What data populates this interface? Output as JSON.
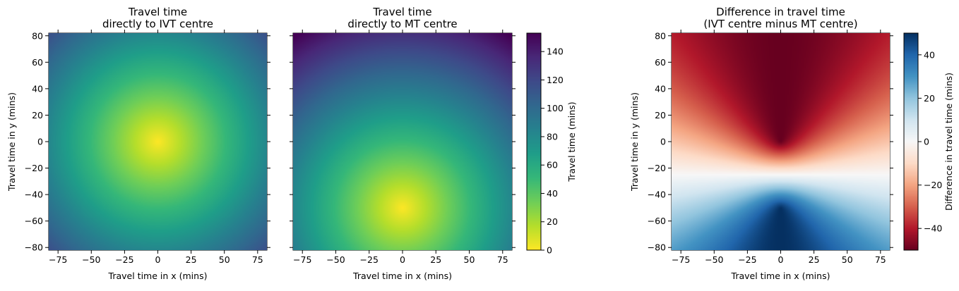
{
  "chart_data": [
    {
      "type": "heatmap",
      "title": [
        "Travel time",
        "directly to IVT centre"
      ],
      "xlabel": "Travel time in x (mins)",
      "ylabel": "Travel time in y (mins)",
      "xlim": [
        -82,
        82
      ],
      "ylim": [
        -82,
        82
      ],
      "xticks": [
        -75,
        -50,
        -25,
        0,
        25,
        50,
        75
      ],
      "yticks": [
        -80,
        -60,
        -40,
        -20,
        0,
        20,
        40,
        60,
        80
      ],
      "colormap": "viridis_r",
      "value": "travel time to IVT centre",
      "markers": [
        {
          "shape": "circle",
          "x": 0,
          "y": 0
        },
        {
          "shape": "diamond",
          "x": 0,
          "y": -50
        }
      ]
    },
    {
      "type": "heatmap",
      "title": [
        "Travel time",
        "directly to MT centre"
      ],
      "xlabel": "Travel time in x (mins)",
      "ylabel": "",
      "xlim": [
        -82,
        82
      ],
      "ylim": [
        -82,
        82
      ],
      "xticks": [
        -75,
        -50,
        -25,
        0,
        25,
        50,
        75
      ],
      "yticks": [
        -80,
        -60,
        -40,
        -20,
        0,
        20,
        40,
        60,
        80
      ],
      "colormap": "viridis_r",
      "value": "travel time to MT centre",
      "colorbar": {
        "label": "Travel time (mins)",
        "range": [
          0,
          153
        ],
        "ticks": [
          0,
          20,
          40,
          60,
          80,
          100,
          120,
          140
        ]
      },
      "markers": [
        {
          "shape": "circle",
          "x": 0,
          "y": 0
        },
        {
          "shape": "diamond",
          "x": 0,
          "y": -50
        }
      ]
    },
    {
      "type": "heatmap",
      "title": [
        "Difference in travel time",
        "(IVT centre minus MT centre)"
      ],
      "xlabel": "Travel time in x (mins)",
      "ylabel": "Travel time in y (mins)",
      "xlim": [
        -82,
        82
      ],
      "ylim": [
        -82,
        82
      ],
      "xticks": [
        -75,
        -50,
        -25,
        0,
        25,
        50,
        75
      ],
      "yticks": [
        -80,
        -60,
        -40,
        -20,
        0,
        20,
        40,
        60,
        80
      ],
      "colormap": "RdBu",
      "value": "IVT travel time minus MT travel time",
      "colorbar": {
        "label": "Difference in travel time (mins)",
        "range": [
          -50,
          50
        ],
        "ticks": [
          -40,
          -20,
          0,
          20,
          40
        ]
      },
      "markers": [
        {
          "shape": "circle",
          "x": 0,
          "y": 0
        },
        {
          "shape": "diamond",
          "x": 0,
          "y": -50
        }
      ]
    }
  ]
}
